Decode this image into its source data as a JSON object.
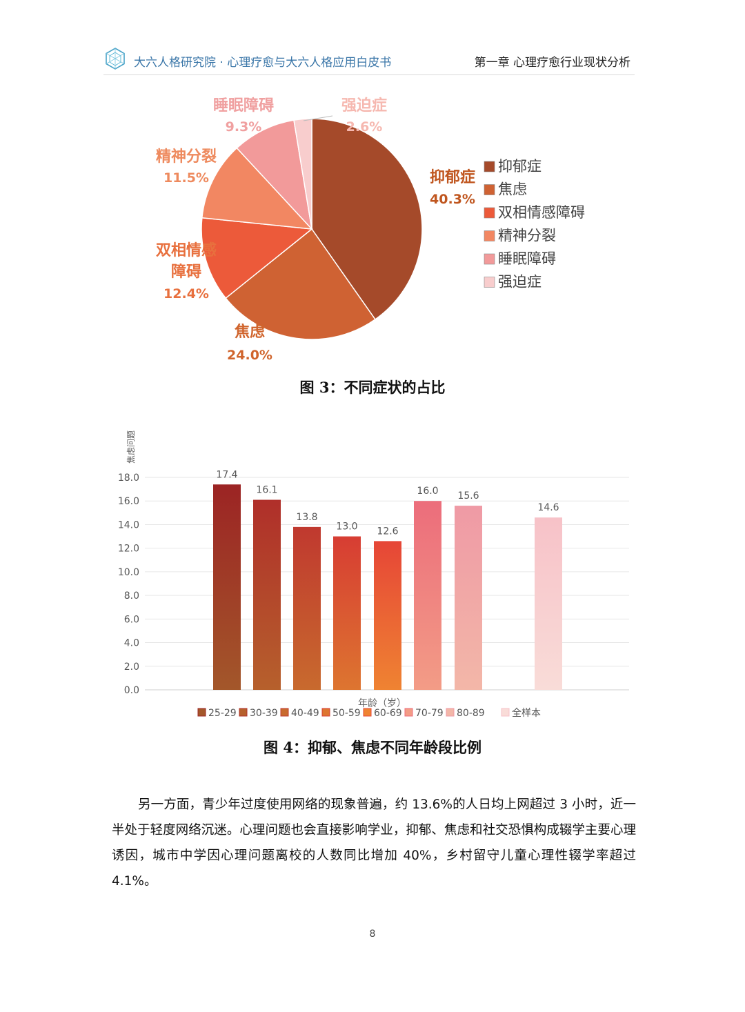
{
  "header": {
    "left_title": "大六人格研究院 · 心理疗愈与大六人格应用白皮书",
    "right_title": "第一章 心理疗愈行业现状分析",
    "logo_icon": "hexagon-network-icon"
  },
  "figure3": {
    "caption": "图 3：不同症状的占比",
    "chart_data": {
      "type": "pie",
      "slices": [
        {
          "label": "抑郁症",
          "value": 40.3,
          "value_label": "40.3%",
          "color": "#a54a2a"
        },
        {
          "label": "焦虑",
          "value": 24.0,
          "value_label": "24.0%",
          "color": "#cf6233"
        },
        {
          "label": "双相情感障碍",
          "value": 12.4,
          "value_label": "12.4%",
          "color": "#ec5a3a"
        },
        {
          "label": "精神分裂",
          "value": 11.5,
          "value_label": "11.5%",
          "color": "#f28762"
        },
        {
          "label": "睡眠障碍",
          "value": 9.3,
          "value_label": "9.3%",
          "color": "#f29a9a"
        },
        {
          "label": "强迫症",
          "value": 2.6,
          "value_label": "2.6%",
          "color": "#f8cdcd"
        }
      ],
      "label_texts": {
        "depression": "抑郁症",
        "anxiety": "焦虑",
        "bipolar_line1": "双相情感",
        "bipolar_line2": "障碍",
        "schizophrenia": "精神分裂",
        "sleep": "睡眠障碍",
        "ocd": "强迫症"
      },
      "legend": [
        "抑郁症",
        "焦虑",
        "双相情感障碍",
        "精神分裂",
        "睡眠障碍",
        "强迫症"
      ],
      "legend_position": "right"
    }
  },
  "figure4": {
    "caption": "图 4：抑郁、焦虑不同年龄段比例",
    "chart_data": {
      "type": "bar",
      "categories": [
        "25-29",
        "30-39",
        "40-49",
        "50-59",
        "60-69",
        "70-79",
        "80-89",
        "全样本"
      ],
      "values": [
        17.4,
        16.1,
        13.8,
        13.0,
        12.6,
        16.0,
        15.6,
        14.6
      ],
      "value_labels": [
        "17.4",
        "16.1",
        "13.8",
        "13.0",
        "12.6",
        "16.0",
        "15.6",
        "14.6"
      ],
      "colors_top": [
        "#9c2424",
        "#b02f2a",
        "#c0392f",
        "#d73d33",
        "#e64637",
        "#ec6d7b",
        "#ef9aa5",
        "#f7c2c8"
      ],
      "colors_bottom": [
        "#a3572a",
        "#b6602c",
        "#c86a2e",
        "#dd7530",
        "#ef8332",
        "#f39c86",
        "#f3b7a8",
        "#f9dcd8"
      ],
      "ylabel": "焦虑问题",
      "xlabel": "年龄（岁）",
      "ylim": [
        0,
        18
      ],
      "yticks": [
        "0.0",
        "2.0",
        "4.0",
        "6.0",
        "8.0",
        "10.0",
        "12.0",
        "14.0",
        "16.0",
        "18.0"
      ],
      "grid": true,
      "legend_position": "bottom"
    }
  },
  "body": {
    "paragraph": "另一方面，青少年过度使用网络的现象普遍，约 13.6%的人日均上网超过 3 小时，近一半处于轻度网络沉迷。心理问题也会直接影响学业，抑郁、焦虑和社交恐惧构成辍学主要心理诱因，城市中学因心理问题离校的人数同比增加 40%，乡村留守儿童心理性辍学率超过 4.1%。"
  },
  "footer": {
    "page_number": "8"
  }
}
